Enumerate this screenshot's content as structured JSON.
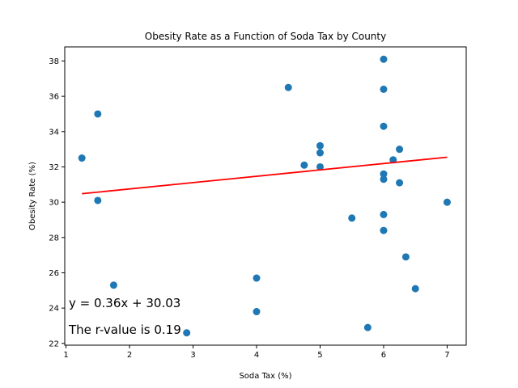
{
  "chart_data": {
    "type": "scatter",
    "title": "Obesity Rate as a Function of Soda Tax by County",
    "xlabel": "Soda Tax (%)",
    "ylabel": "Obesity Rate (%)",
    "xlim": [
      0.98,
      7.3
    ],
    "ylim": [
      21.9,
      38.8
    ],
    "xticks": [
      1,
      2,
      3,
      4,
      5,
      6,
      7
    ],
    "yticks": [
      22,
      24,
      26,
      28,
      30,
      32,
      34,
      36,
      38
    ],
    "grid": false,
    "point_color": "#1f77b4",
    "line_color": "#ff0000",
    "points": [
      {
        "x": 1.25,
        "y": 32.5
      },
      {
        "x": 1.5,
        "y": 35.0
      },
      {
        "x": 1.5,
        "y": 30.1
      },
      {
        "x": 1.75,
        "y": 25.3
      },
      {
        "x": 2.9,
        "y": 22.6
      },
      {
        "x": 4.0,
        "y": 25.7
      },
      {
        "x": 4.0,
        "y": 23.8
      },
      {
        "x": 4.5,
        "y": 36.5
      },
      {
        "x": 4.75,
        "y": 32.1
      },
      {
        "x": 5.0,
        "y": 33.2
      },
      {
        "x": 5.0,
        "y": 32.8
      },
      {
        "x": 5.0,
        "y": 32.0
      },
      {
        "x": 5.5,
        "y": 29.1
      },
      {
        "x": 5.75,
        "y": 22.9
      },
      {
        "x": 6.0,
        "y": 38.1
      },
      {
        "x": 6.0,
        "y": 36.4
      },
      {
        "x": 6.0,
        "y": 34.3
      },
      {
        "x": 6.0,
        "y": 31.6
      },
      {
        "x": 6.0,
        "y": 31.3
      },
      {
        "x": 6.0,
        "y": 29.3
      },
      {
        "x": 6.0,
        "y": 28.4
      },
      {
        "x": 6.15,
        "y": 32.4
      },
      {
        "x": 6.25,
        "y": 33.0
      },
      {
        "x": 6.25,
        "y": 31.1
      },
      {
        "x": 6.35,
        "y": 26.9
      },
      {
        "x": 6.5,
        "y": 25.1
      },
      {
        "x": 7.0,
        "y": 30.0
      }
    ],
    "regression": {
      "slope": 0.36,
      "intercept": 30.03,
      "x_range": [
        1.25,
        7.0
      ]
    },
    "annotations": [
      "y = 0.36x + 30.03",
      "The r-value is 0.19"
    ]
  }
}
